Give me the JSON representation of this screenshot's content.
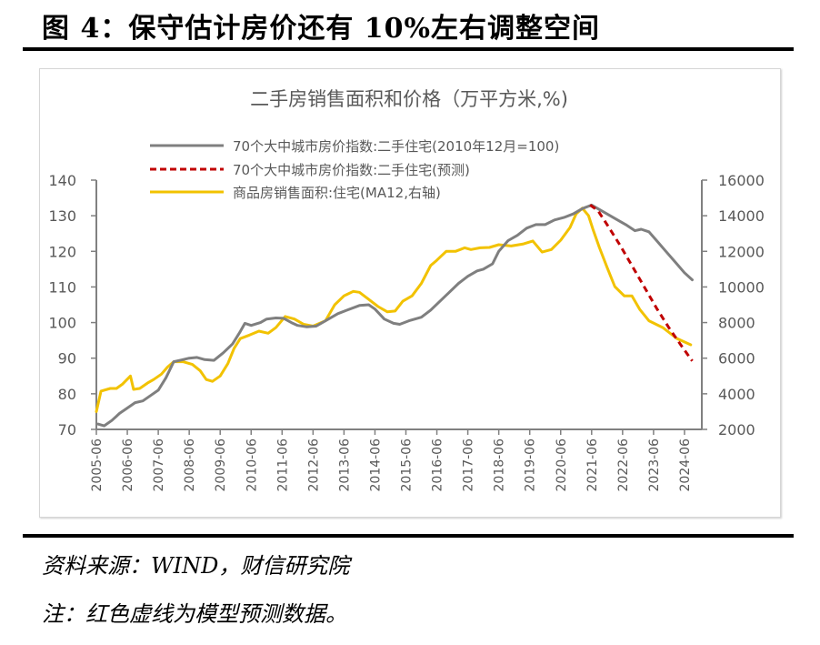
{
  "figure": {
    "title": "图 4：保守估计房价还有 10%左右调整空间",
    "source": "资料来源：WIND，财信研究院",
    "note": "注：红色虚线为模型预测数据。"
  },
  "colors": {
    "gray": "#7f7f7f",
    "red": "#c00000",
    "yellow": "#f2c200",
    "axis": "#808080",
    "text": "#595959"
  },
  "chart_data": {
    "type": "line",
    "title": "二手房销售面积和价格（万平方米,%)",
    "xlabel": "",
    "ylabel": "",
    "ylim": [
      70,
      140
    ],
    "y2lim": [
      2000,
      16000
    ],
    "yticks": [
      "70",
      "80",
      "90",
      "100",
      "110",
      "120",
      "130",
      "140"
    ],
    "y2ticks": [
      "2000",
      "4000",
      "6000",
      "8000",
      "10000",
      "12000",
      "14000",
      "16000"
    ],
    "xticks": [
      "2005-06",
      "2006-06",
      "2007-06",
      "2008-06",
      "2009-06",
      "2010-06",
      "2011-06",
      "2012-06",
      "2013-06",
      "2014-06",
      "2015-06",
      "2016-06",
      "2017-06",
      "2018-06",
      "2019-06",
      "2020-06",
      "2021-06",
      "2022-06",
      "2023-06",
      "2024-06"
    ],
    "xrange": [
      2005.45,
      2025.05
    ],
    "legend_position": "top-left",
    "grid": false,
    "series": [
      {
        "name": "70个大中城市房价指数:二手住宅(2010年12月=100)",
        "axis": "left",
        "style": "solid",
        "color_key": "gray",
        "x": [
          2005.55,
          2005.75,
          2006.0,
          2006.25,
          2006.5,
          2006.75,
          2007.0,
          2007.25,
          2007.5,
          2007.75,
          2008.0,
          2008.25,
          2008.5,
          2008.75,
          2009.0,
          2009.3,
          2009.6,
          2009.9,
          2010.15,
          2010.3,
          2010.5,
          2010.8,
          2011.0,
          2011.3,
          2011.55,
          2011.8,
          2012.0,
          2012.3,
          2012.6,
          2013.0,
          2013.3,
          2013.6,
          2014.0,
          2014.3,
          2014.5,
          2014.8,
          2015.1,
          2015.3,
          2015.6,
          2016.0,
          2016.3,
          2016.6,
          2016.9,
          2017.2,
          2017.5,
          2017.8,
          2018.0,
          2018.3,
          2018.5,
          2018.8,
          2019.1,
          2019.4,
          2019.7,
          2020.0,
          2020.3,
          2020.6,
          2020.9,
          2021.2,
          2021.5,
          2021.7,
          2022.0,
          2022.3,
          2022.6,
          2022.9,
          2023.1,
          2023.35,
          2023.6,
          2023.9,
          2024.2,
          2024.5,
          2024.75
        ],
        "values": [
          71.5,
          71.0,
          72.5,
          74.5,
          76.0,
          77.5,
          78.0,
          79.5,
          81.0,
          84.5,
          89.0,
          89.5,
          90.0,
          90.2,
          89.6,
          89.4,
          91.5,
          94.0,
          97.5,
          99.8,
          99.2,
          100.0,
          101.0,
          101.3,
          101.2,
          100.0,
          99.2,
          98.8,
          99.0,
          101.0,
          102.5,
          103.5,
          104.8,
          105.0,
          103.8,
          101.0,
          99.8,
          99.5,
          100.5,
          101.5,
          103.5,
          106.0,
          108.5,
          111.0,
          113.0,
          114.5,
          115.0,
          116.5,
          120.0,
          123.0,
          124.5,
          126.5,
          127.5,
          127.5,
          128.8,
          129.5,
          130.5,
          132.0,
          133.0,
          132.0,
          130.5,
          129.0,
          127.5,
          125.8,
          126.2,
          125.5,
          123.0,
          120.0,
          117.0,
          114.0,
          112.0
        ]
      },
      {
        "name": "70个大中城市房价指数:二手住宅(预测)",
        "axis": "left",
        "style": "dashed",
        "color_key": "red",
        "x": [
          2021.45,
          2021.7,
          2022.0,
          2022.4,
          2022.8,
          2023.2,
          2023.6,
          2024.0,
          2024.4,
          2024.75
        ],
        "values": [
          133.0,
          131.5,
          127.5,
          122.0,
          116.0,
          110.0,
          104.0,
          98.5,
          93.5,
          89.2
        ]
      },
      {
        "name": "商品房销售面积:住宅(MA12,右轴)",
        "axis": "right",
        "style": "solid",
        "color_key": "yellow",
        "x": [
          2005.5,
          2005.65,
          2005.95,
          2006.15,
          2006.35,
          2006.6,
          2006.7,
          2006.9,
          2007.15,
          2007.35,
          2007.6,
          2007.8,
          2008.0,
          2008.3,
          2008.6,
          2008.85,
          2009.05,
          2009.25,
          2009.5,
          2009.75,
          2009.95,
          2010.15,
          2010.45,
          2010.75,
          2011.05,
          2011.3,
          2011.6,
          2011.9,
          2012.2,
          2012.5,
          2012.9,
          2013.2,
          2013.5,
          2013.8,
          2014.0,
          2014.3,
          2014.6,
          2014.9,
          2015.15,
          2015.4,
          2015.7,
          2016.0,
          2016.3,
          2016.5,
          2016.8,
          2017.1,
          2017.4,
          2017.6,
          2017.9,
          2018.2,
          2018.5,
          2018.9,
          2019.3,
          2019.6,
          2019.9,
          2020.2,
          2020.5,
          2020.8,
          2021.0,
          2021.2,
          2021.4,
          2021.55,
          2021.75,
          2022.0,
          2022.25,
          2022.55,
          2022.8,
          2023.05,
          2023.35,
          2023.8,
          2024.25,
          2024.7
        ],
        "values": [
          3000,
          4150,
          4300,
          4300,
          4550,
          5000,
          4250,
          4300,
          4600,
          4800,
          5100,
          5500,
          5800,
          5800,
          5650,
          5300,
          4800,
          4700,
          5000,
          5700,
          6550,
          7100,
          7300,
          7520,
          7400,
          7720,
          8340,
          8200,
          7900,
          7800,
          8100,
          9000,
          9500,
          9750,
          9700,
          9300,
          8900,
          8600,
          8650,
          9200,
          9500,
          10200,
          11200,
          11500,
          12000,
          12000,
          12200,
          12100,
          12200,
          12220,
          12370,
          12300,
          12420,
          12580,
          11960,
          12100,
          12630,
          13340,
          14110,
          14420,
          14000,
          13200,
          12220,
          11100,
          10020,
          9500,
          9500,
          8750,
          8100,
          7720,
          7110,
          6750
        ]
      }
    ]
  }
}
